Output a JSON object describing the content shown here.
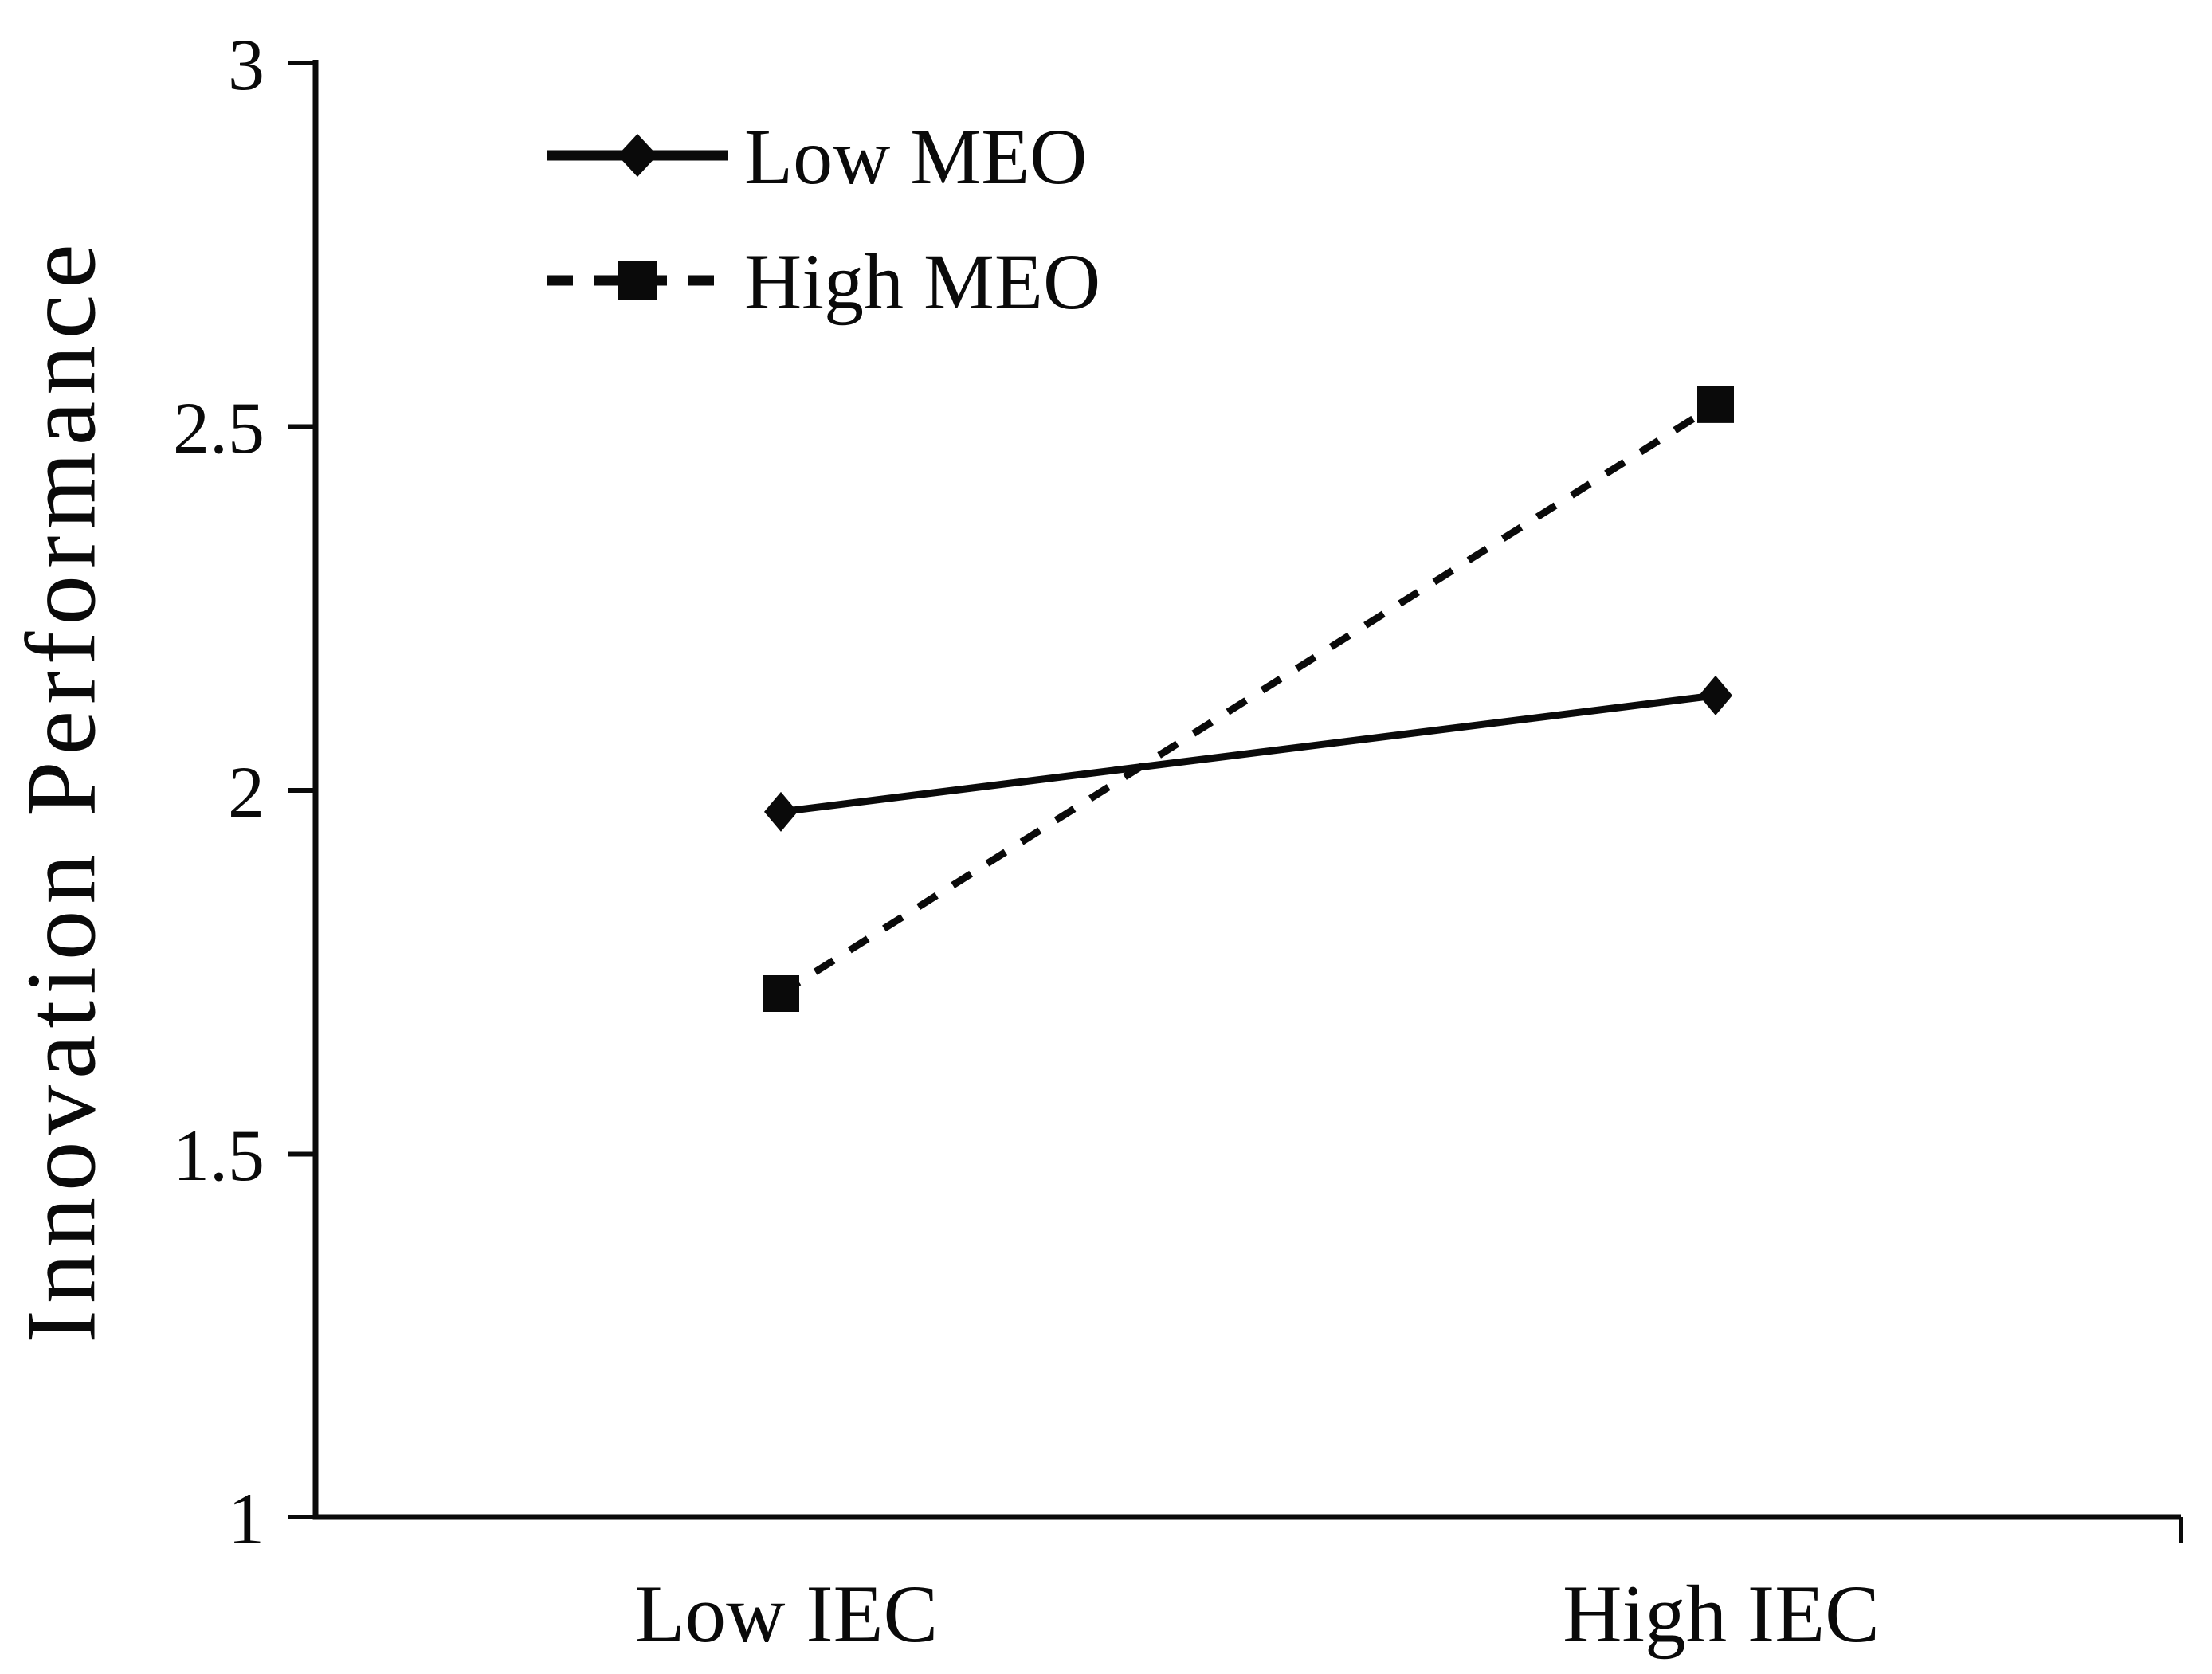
{
  "chart_data": {
    "type": "line",
    "title": "",
    "categories": [
      "Low IEC",
      "High IEC"
    ],
    "series": [
      {
        "name": "Low MEO",
        "marker": "diamond",
        "line_style": "solid",
        "values": [
          1.97,
          2.13
        ]
      },
      {
        "name": "High MEO",
        "marker": "square",
        "line_style": "dashed",
        "values": [
          1.72,
          2.53
        ]
      }
    ],
    "xlabel": "",
    "ylabel": "Innovation Performance",
    "ylim": [
      1,
      3
    ],
    "yticks": [
      1,
      1.5,
      2,
      2.5,
      3
    ],
    "ytick_labels": [
      "1",
      "1.5",
      "2",
      "2.5",
      "3"
    ],
    "grid": false,
    "legend_position": "inside-top-left",
    "colors": {
      "foreground": "#0a0a0a",
      "background": "#ffffff"
    }
  }
}
